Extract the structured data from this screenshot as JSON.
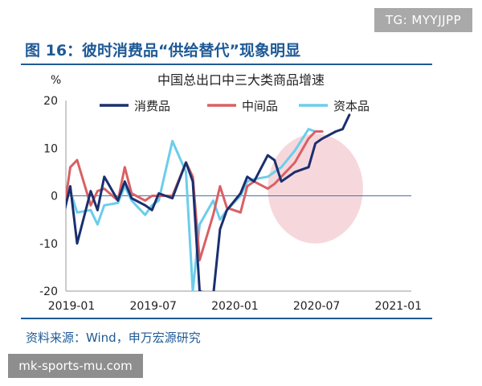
{
  "watermark_top": "TG: MYYJJPP",
  "figure_title": "图 16：彼时消费品“供给替代”现象明显",
  "source_note": "资料来源：Wind，申万宏源研究",
  "watermark_bottom": "mk-sports-mu.com",
  "colors": {
    "title_blue": "#1f5a96",
    "consumer": "#1b2f6e",
    "intermediate": "#d96065",
    "capital": "#6ccdea",
    "highlight": "#f6d8dc"
  },
  "chart_data": {
    "type": "line",
    "title": "中国总出口中三大类商品增速",
    "ylabel": "%",
    "ylim": [
      -20,
      20
    ],
    "yticks": [
      20,
      10,
      0,
      -10,
      -20
    ],
    "xlim": [
      "2019-01",
      "2021-02"
    ],
    "xtick_labels": [
      "2019-01",
      "2019-07",
      "2020-01",
      "2020-07",
      "2021-01"
    ],
    "grid": false,
    "legend": "top",
    "highlight_region": {
      "x": [
        "2020-04",
        "2020-11"
      ],
      "y": [
        -10,
        13
      ]
    },
    "x": [
      "2019-01",
      "2019-01",
      "2019-02",
      "2019-03",
      "2019-03",
      "2019-04",
      "2019-05",
      "2019-05",
      "2019-06",
      "2019-07",
      "2019-07",
      "2019-08",
      "2019-09",
      "2019-10",
      "2019-10",
      "2019-11",
      "2019-12",
      "2019-12",
      "2020-01",
      "2020-02",
      "2020-02",
      "2020-03",
      "2020-04",
      "2020-04",
      "2020-05",
      "2020-06",
      "2020-07",
      "2020-07",
      "2020-08",
      "2020-09",
      "2020-09",
      "2020-10",
      "2020-11",
      "2020-12",
      "2020-12",
      "2021-01",
      "2021-01",
      "2021-02"
    ],
    "series": [
      {
        "name": "消费品",
        "color": "#1b2f6e",
        "values": [
          -4,
          2,
          -10,
          1,
          -3,
          4,
          -1,
          3,
          -0.5,
          -2,
          -3,
          0.5,
          -0.5,
          7,
          3,
          -20,
          -21,
          -7,
          -3,
          0.5,
          4,
          3,
          8.5,
          7.5,
          3,
          5,
          6,
          11,
          12,
          13.5,
          14,
          17,
          null,
          null,
          null,
          null,
          null,
          null
        ]
      },
      {
        "name": "中间品",
        "color": "#d96065",
        "values": [
          -4,
          6,
          7.5,
          -2,
          1,
          1.5,
          -1,
          6,
          0.5,
          -1,
          0,
          0,
          0,
          7,
          4,
          -13.5,
          -4,
          2,
          -2.5,
          -3.5,
          2,
          3,
          1.5,
          2.5,
          4,
          7,
          12,
          13.5,
          13.5,
          null,
          null,
          null,
          null,
          null,
          null,
          null,
          null,
          null
        ]
      },
      {
        "name": "资本品",
        "color": "#6ccdea",
        "values": [
          0,
          1,
          -3.5,
          -3,
          -6,
          -2,
          -1.5,
          2,
          -1,
          -4,
          -2,
          -1,
          11.5,
          5,
          -20,
          -6,
          -1,
          -5,
          -3,
          0,
          3,
          3.5,
          4,
          5,
          6,
          9.5,
          14,
          13.5,
          null,
          null,
          null,
          null,
          null,
          null,
          null,
          null,
          null,
          null
        ]
      }
    ]
  }
}
